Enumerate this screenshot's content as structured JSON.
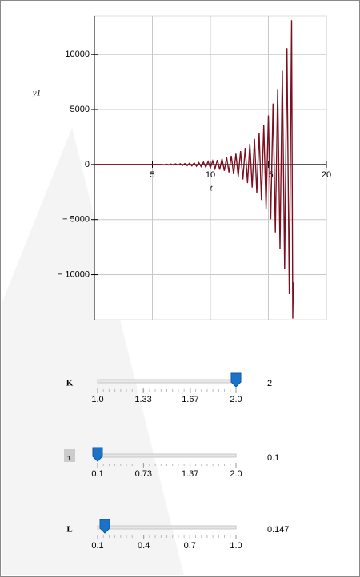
{
  "chart_data": {
    "type": "line",
    "xlabel": "t",
    "ylabel": "y1",
    "color": "#7a1020",
    "x": [
      0,
      5.8,
      6.0,
      6.2,
      6.4,
      6.6,
      6.8,
      7.0,
      7.2,
      7.4,
      7.6,
      7.8,
      8.0,
      8.2,
      8.4,
      8.6,
      8.8,
      9.0,
      9.2,
      9.4,
      9.6,
      9.8,
      10.0,
      10.2,
      10.4,
      10.6,
      10.8,
      11.0,
      11.2,
      11.4,
      11.6,
      11.8,
      12.0,
      12.2,
      12.4,
      12.6,
      12.8,
      13.0,
      13.2,
      13.4,
      13.6,
      13.8,
      14.0,
      14.2,
      14.4,
      14.6,
      14.8,
      15.0,
      15.2,
      15.4,
      15.6,
      15.8,
      16.0,
      16.2,
      16.4,
      16.6,
      16.8,
      17.0,
      17.1,
      17.15
    ],
    "values": [
      0,
      0,
      -35,
      39,
      -43,
      48,
      -53,
      59,
      -66,
      74,
      -82,
      91,
      -102,
      113,
      -126,
      141,
      -157,
      175,
      -195,
      217,
      -242,
      269,
      -300,
      334,
      -372,
      415,
      -462,
      515,
      -573,
      639,
      -711,
      793,
      -883,
      984,
      -1096,
      1221,
      -1360,
      1515,
      -1688,
      1880,
      -2094,
      2333,
      -2599,
      2895,
      -3225,
      3593,
      -4002,
      4458,
      -4967,
      5533,
      -6163,
      6866,
      -7649,
      8521,
      -9492,
      10574,
      -11779,
      13122,
      -14000,
      -10700
    ],
    "xlim": [
      0,
      20
    ],
    "ylim": [
      -14100,
      13500
    ],
    "xticks": [
      5,
      10,
      15,
      20
    ],
    "yticks": [
      {
        "value": -10000,
        "label": "− 10000"
      },
      {
        "value": -5000,
        "label": "− 5000"
      },
      0,
      5000,
      10000
    ],
    "grid": true
  },
  "sliders": [
    {
      "name": "K",
      "value": 2,
      "ticks": [
        {
          "value": 1,
          "label": "1.0"
        },
        1.33,
        1.67,
        {
          "value": 2,
          "label": "2.0"
        }
      ]
    },
    {
      "name": "τ",
      "value": 0.1,
      "ticks": [
        0.1,
        0.73,
        1.37,
        {
          "value": 2,
          "label": "2.0"
        }
      ]
    },
    {
      "name": "L",
      "value": 0.147,
      "ticks": [
        0.1,
        0.4,
        0.7,
        {
          "value": 1,
          "label": "1.0"
        }
      ]
    }
  ]
}
